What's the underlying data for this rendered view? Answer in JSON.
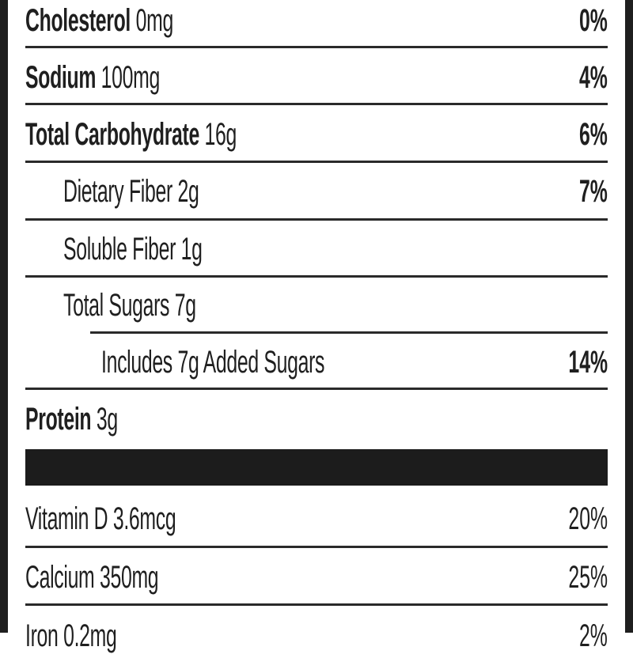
{
  "rows": [
    {
      "name": "Cholesterol",
      "amount": "0mg",
      "dv": "0%"
    },
    {
      "name": "Sodium",
      "amount": "100mg",
      "dv": "4%"
    },
    {
      "name": "Total Carbohydrate",
      "amount": "16g",
      "dv": "6%"
    },
    {
      "name": "Dietary Fiber",
      "amount": "2g",
      "dv": "7%"
    },
    {
      "name": "Soluble Fiber",
      "amount": "1g",
      "dv": ""
    },
    {
      "name": "Total Sugars",
      "amount": "7g",
      "dv": ""
    },
    {
      "name": "Includes 7g Added Sugars",
      "amount": "",
      "dv": "14%"
    },
    {
      "name": "Protein",
      "amount": "3g",
      "dv": ""
    },
    {
      "name": "Vitamin D",
      "amount": "3.6mcg",
      "dv": "20%"
    },
    {
      "name": "Calcium",
      "amount": "350mg",
      "dv": "25%"
    },
    {
      "name": "Iron",
      "amount": "0.2mg",
      "dv": "2%"
    }
  ]
}
